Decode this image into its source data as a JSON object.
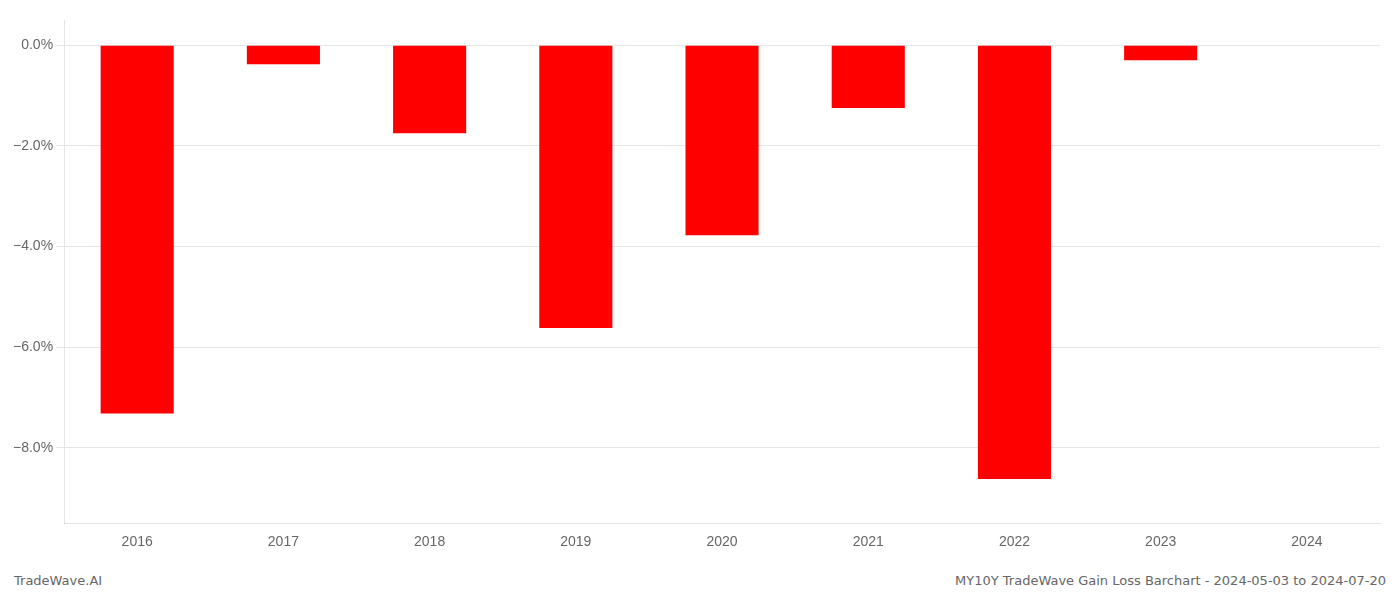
{
  "chart_data": {
    "type": "bar",
    "categories": [
      "2016",
      "2017",
      "2018",
      "2019",
      "2020",
      "2021",
      "2022",
      "2023",
      "2024"
    ],
    "values": [
      -7.32,
      -0.38,
      -1.75,
      -5.62,
      -3.78,
      -1.25,
      -8.62,
      -0.3,
      0.0
    ],
    "color": "#ff0000",
    "ylim": [
      -9.5,
      0.5
    ],
    "yticks": [
      {
        "value": 0.0,
        "label": "0.0%"
      },
      {
        "value": -2.0,
        "label": "−2.0%"
      },
      {
        "value": -4.0,
        "label": "−4.0%"
      },
      {
        "value": -6.0,
        "label": "−6.0%"
      },
      {
        "value": -8.0,
        "label": "−8.0%"
      }
    ],
    "grid": true,
    "annotations": [
      "TradeWave.AI",
      "MY10Y TradeWave Gain Loss Barchart - 2024-05-03 to 2024-07-20"
    ]
  }
}
